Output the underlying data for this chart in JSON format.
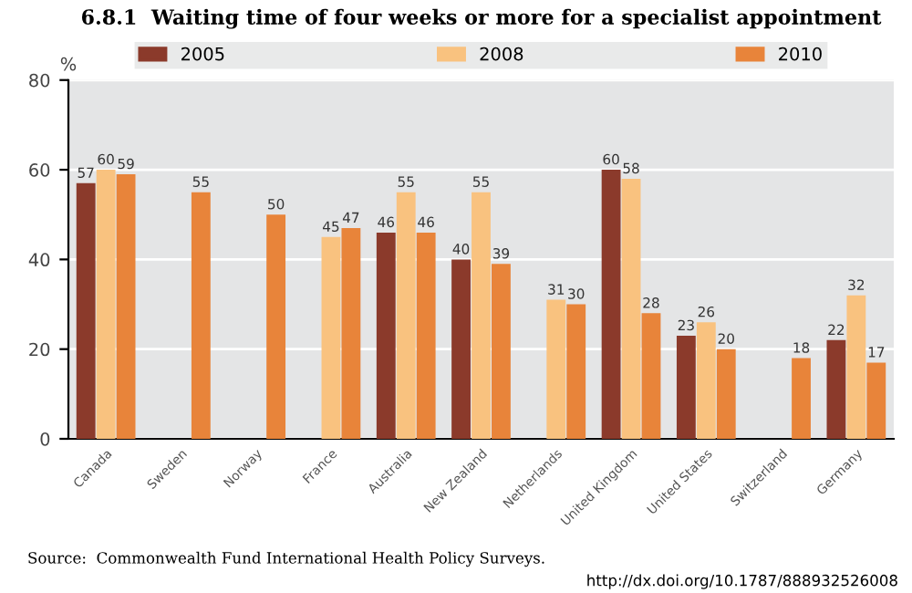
{
  "chart_data": {
    "type": "bar",
    "title": "6.8.1  Waiting time of four weeks or more for a specialist appointment",
    "ylabel": "%",
    "categories": [
      "Canada",
      "Sweden",
      "Norway",
      "France",
      "Australia",
      "New Zealand",
      "Netherlands",
      "United Kingdom",
      "United States",
      "Switzerland",
      "Germany"
    ],
    "series": [
      {
        "name": "2005",
        "color": "#8b3a2b",
        "values": [
          57,
          null,
          null,
          null,
          46,
          40,
          null,
          60,
          23,
          null,
          22
        ]
      },
      {
        "name": "2008",
        "color": "#f9c27f",
        "values": [
          60,
          null,
          null,
          45,
          55,
          55,
          31,
          58,
          26,
          null,
          32
        ]
      },
      {
        "name": "2010",
        "color": "#e8843a",
        "values": [
          59,
          55,
          50,
          47,
          46,
          39,
          30,
          28,
          20,
          18,
          17
        ]
      }
    ],
    "ylim": [
      0,
      80
    ],
    "yticks": [
      0,
      20,
      40,
      60,
      80
    ],
    "grid": "y",
    "legend": "top",
    "data_labels": true,
    "annotations": [
      "Source:  Commonwealth Fund International Health Policy Surveys.",
      "http://dx.doi.org/10.1787/888932526008"
    ]
  }
}
